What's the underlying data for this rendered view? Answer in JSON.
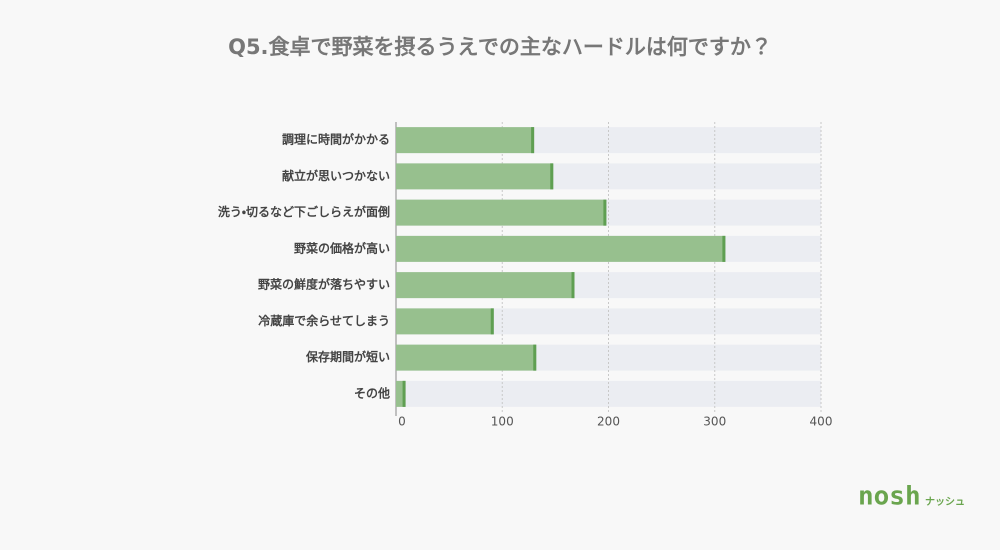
{
  "chart_data": {
    "type": "bar",
    "title": "Q5.食卓で野菜を摂るうえでの主なハードルは何ですか？",
    "categories": [
      "調理に時間がかかる",
      "献立が思いつかない",
      "洗う・切るなど下ごしらえが面倒",
      "野菜の価格が高い",
      "野菜の鮮度が落ちやすい",
      "冷蔵庫で余らせてしまう",
      "保存期間が短い",
      "その他"
    ],
    "values": [
      130,
      148,
      198,
      310,
      168,
      92,
      132,
      9
    ],
    "color": "#97c08e",
    "xlim": [
      0,
      400
    ],
    "xticks": [
      0,
      100,
      200,
      300,
      400
    ],
    "grid": true
  },
  "brand": {
    "logo": "nosh",
    "logo_sub": "ナッシュ"
  }
}
